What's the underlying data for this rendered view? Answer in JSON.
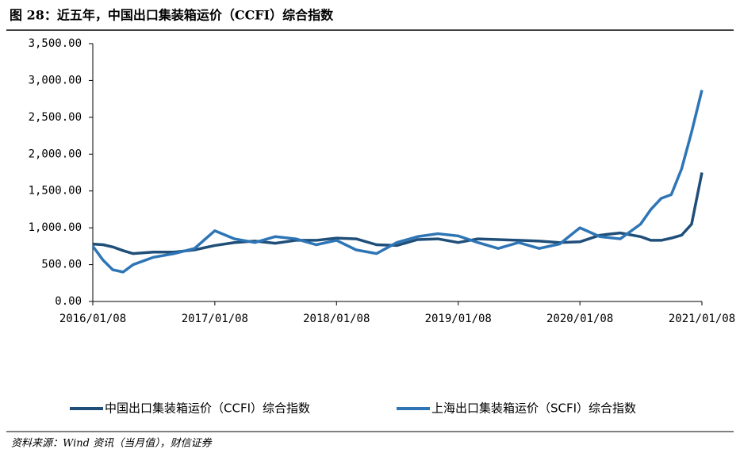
{
  "chart_data": {
    "type": "line",
    "title": "图 28：近五年，中国出口集装箱运价（CCFI）综合指数",
    "source": "资料来源：Wind 资讯（当月值），财信证券",
    "x": [
      "2016/01/08",
      "2016/02/08",
      "2016/03/08",
      "2016/04/08",
      "2016/05/08",
      "2016/07/08",
      "2016/09/08",
      "2016/11/08",
      "2017/01/08",
      "2017/03/08",
      "2017/05/08",
      "2017/07/08",
      "2017/09/08",
      "2017/11/08",
      "2018/01/08",
      "2018/03/08",
      "2018/05/08",
      "2018/07/08",
      "2018/09/08",
      "2018/11/08",
      "2019/01/08",
      "2019/03/08",
      "2019/05/08",
      "2019/07/08",
      "2019/09/08",
      "2019/11/08",
      "2020/01/08",
      "2020/03/08",
      "2020/05/08",
      "2020/07/08",
      "2020/08/08",
      "2020/09/08",
      "2020/10/08",
      "2020/11/08",
      "2020/12/08",
      "2021/01/08"
    ],
    "series": [
      {
        "name": "中国出口集装箱运价（CCFI）综合指数",
        "color": "#1f4e79",
        "values": [
          780,
          770,
          740,
          690,
          650,
          670,
          670,
          700,
          760,
          800,
          820,
          790,
          830,
          830,
          860,
          850,
          770,
          760,
          840,
          850,
          800,
          850,
          840,
          830,
          820,
          800,
          810,
          900,
          930,
          880,
          830,
          830,
          860,
          900,
          1050,
          1750
        ]
      },
      {
        "name": "上海出口集装箱运价（SCFI）综合指数",
        "color": "#2e75b6",
        "values": [
          750,
          560,
          430,
          400,
          500,
          600,
          650,
          720,
          960,
          850,
          800,
          880,
          850,
          770,
          830,
          700,
          650,
          800,
          880,
          920,
          890,
          800,
          720,
          800,
          720,
          780,
          1000,
          880,
          850,
          1050,
          1250,
          1400,
          1450,
          1800,
          2300,
          2870
        ]
      }
    ],
    "ylim": [
      0,
      3500
    ],
    "yticks": [
      {
        "value": 0,
        "label": "0.00"
      },
      {
        "value": 500,
        "label": "500.00"
      },
      {
        "value": 1000,
        "label": "1,000.00"
      },
      {
        "value": 1500,
        "label": "1,500.00"
      },
      {
        "value": 2000,
        "label": "2,000.00"
      },
      {
        "value": 2500,
        "label": "2,500.00"
      },
      {
        "value": 3000,
        "label": "3,000.00"
      },
      {
        "value": 3500,
        "label": "3,500.00"
      }
    ],
    "xticks": [
      "2016/01/08",
      "2017/01/08",
      "2018/01/08",
      "2019/01/08",
      "2020/01/08",
      "2021/01/08"
    ]
  }
}
